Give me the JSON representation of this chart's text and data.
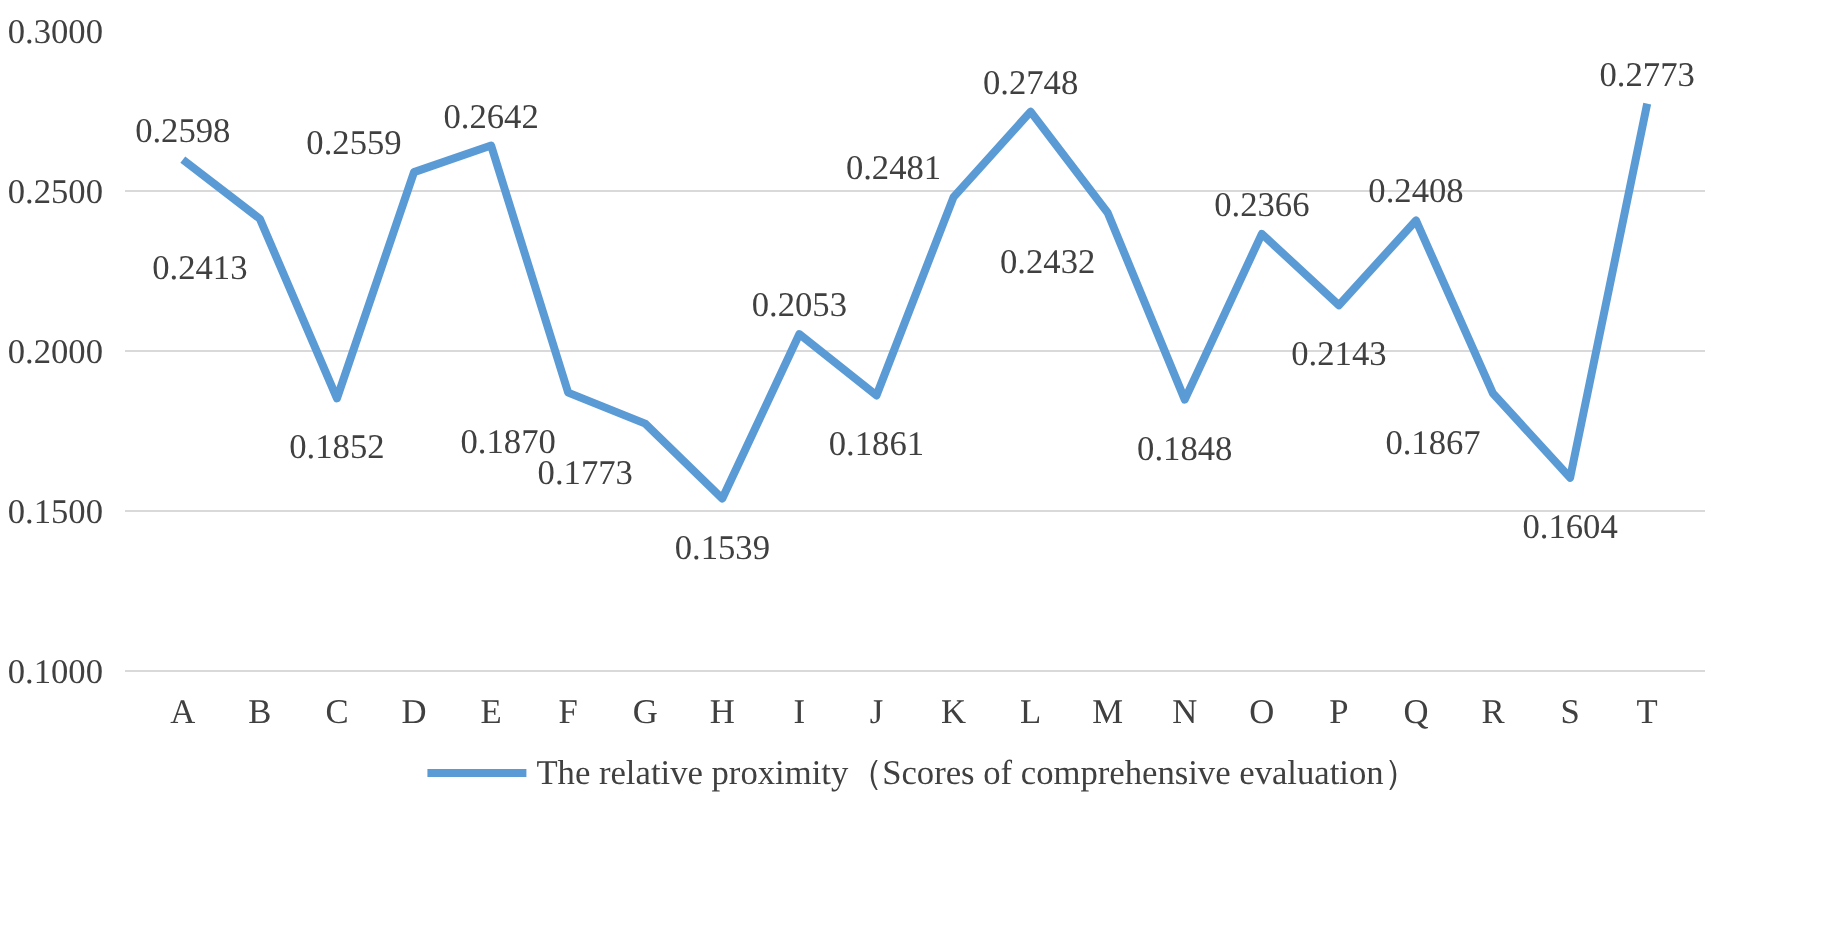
{
  "chart_data": {
    "type": "line",
    "categories": [
      "A",
      "B",
      "C",
      "D",
      "E",
      "F",
      "G",
      "H",
      "I",
      "J",
      "K",
      "L",
      "M",
      "N",
      "O",
      "P",
      "Q",
      "R",
      "S",
      "T"
    ],
    "series": [
      {
        "name": "The relative proximity（Scores of comprehensive evaluation）",
        "color": "#5b9bd5",
        "values": [
          0.2598,
          0.2413,
          0.1852,
          0.2559,
          0.2642,
          0.187,
          0.1773,
          0.1539,
          0.2053,
          0.1861,
          0.2481,
          0.2748,
          0.2432,
          0.1848,
          0.2366,
          0.2143,
          0.2408,
          0.1867,
          0.1604,
          0.2773
        ],
        "value_labels": [
          "0.2598",
          "0.2413",
          "0.1852",
          "0.2559",
          "0.2642",
          "0.1870",
          "0.1773",
          "0.1539",
          "0.2053",
          "0.1861",
          "0.2481",
          "0.2748",
          "0.2432",
          "0.1848",
          "0.2366",
          "0.2143",
          "0.2408",
          "0.1867",
          "0.1604",
          "0.2773"
        ]
      }
    ],
    "ylim": [
      0.1,
      0.3
    ],
    "yticks": [
      {
        "value": 0.1,
        "label": "0.1000"
      },
      {
        "value": 0.15,
        "label": "0.1500"
      },
      {
        "value": 0.2,
        "label": "0.2000"
      },
      {
        "value": 0.25,
        "label": "0.2500"
      },
      {
        "value": 0.3,
        "label": "0.3000"
      }
    ],
    "grid": "y",
    "legend": "bottom",
    "marker": "none",
    "line_style": "solid"
  }
}
